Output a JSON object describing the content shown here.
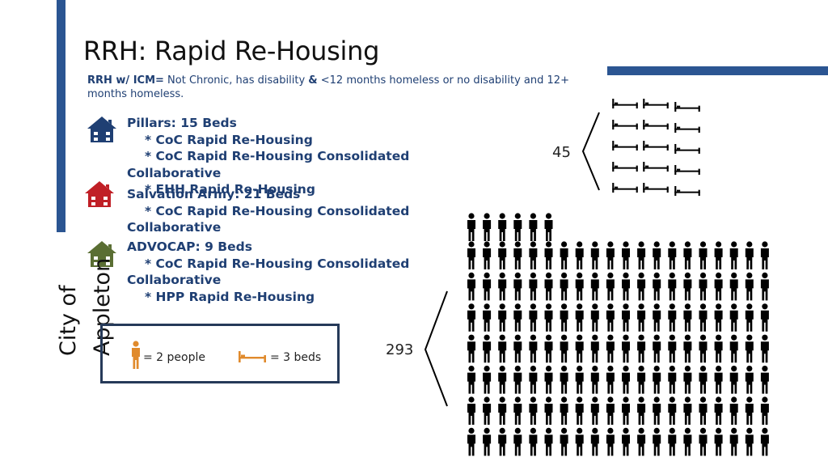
{
  "title": "RRH: Rapid Re-Housing",
  "definition": {
    "label": "RRH w/ ICM=",
    "text_1": " Not Chronic, has disability ",
    "amp": "&",
    "text_2": " <12 months homeless or no disability and 12+ months homeless."
  },
  "providers": [
    {
      "name": "Pillars:  15 Beds",
      "programs": [
        "* CoC Rapid Re-Housing",
        "* CoC Rapid Re-Housing Consolidated",
        "Collaborative",
        "* EHH Rapid Re-Housing"
      ],
      "icon": "house-icon",
      "color": "#1f3f73"
    },
    {
      "name": "Salvation Army:  21 Beds",
      "programs": [
        "* CoC Rapid Re-Housing Consolidated",
        "Collaborative"
      ],
      "icon": "house-icon",
      "color": "#c01f26"
    },
    {
      "name": "ADVOCAP:  9 Beds",
      "programs": [
        "* CoC Rapid Re-Housing Consolidated",
        "Collaborative",
        "* HPP Rapid  Re-Housing"
      ],
      "icon": "house-icon",
      "color": "#5a6e33"
    }
  ],
  "vertical_label": "City of\nAppleton",
  "legend": {
    "person_text": "= 2 people",
    "bed_text": "= 3 beds",
    "icon_color": "#e08a2c"
  },
  "beds": {
    "count_label": "45",
    "icon_count": 15
  },
  "people": {
    "count_label": "293",
    "icon_count": 146.5
  }
}
